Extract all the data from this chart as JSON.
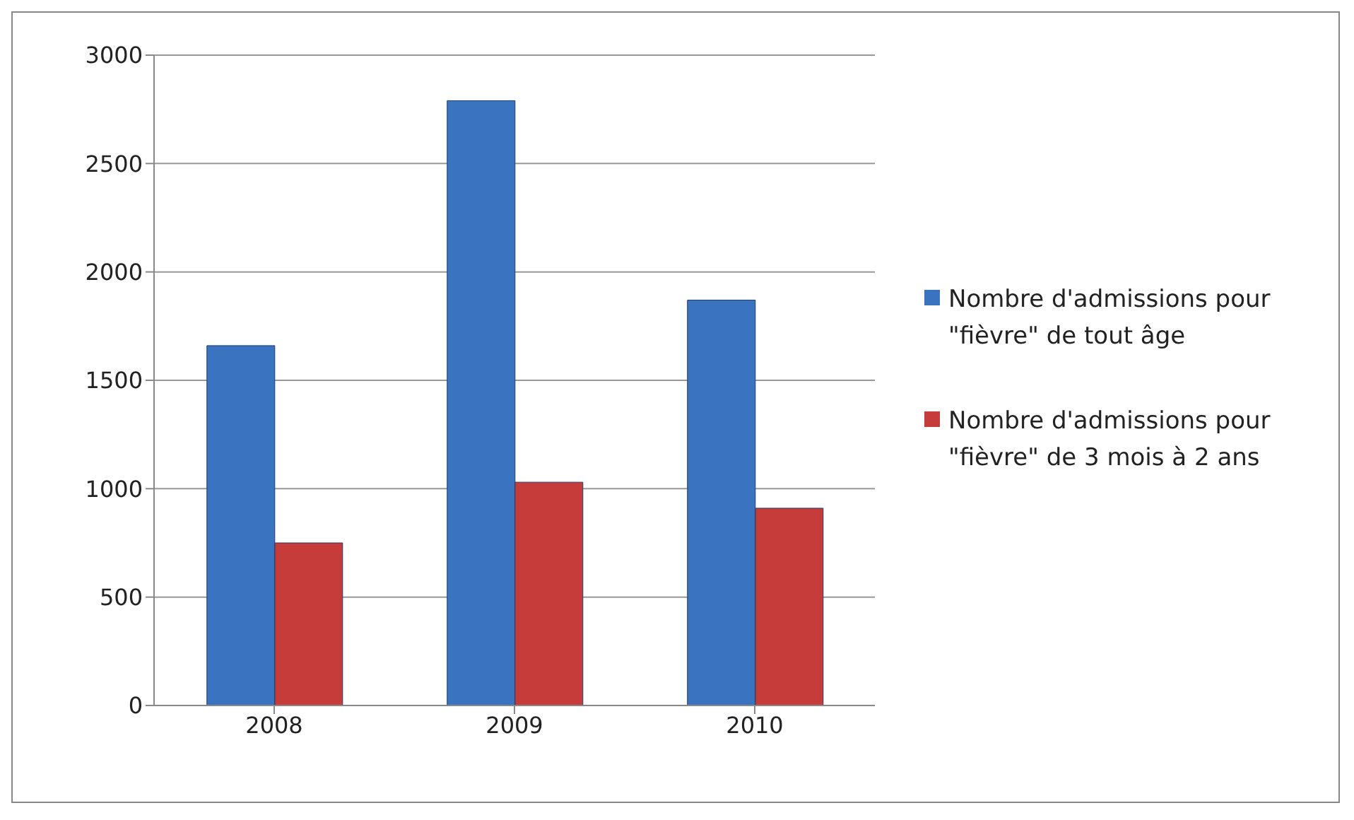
{
  "chart_data": {
    "type": "bar",
    "categories": [
      "2008",
      "2009",
      "2010"
    ],
    "series": [
      {
        "name": "Nombre d'admissions pour \"fièvre\" de tout âge",
        "color": "#3a73c0",
        "values": [
          1660,
          2790,
          1870
        ]
      },
      {
        "name": "Nombre d'admissions pour \"fièvre\" de 3 mois à 2 ans",
        "color": "#c63c3a",
        "values": [
          750,
          1030,
          910
        ]
      }
    ],
    "ylim": [
      0,
      3000
    ],
    "yticks": [
      0,
      500,
      1000,
      1500,
      2000,
      2500,
      3000
    ],
    "grid": "y",
    "legend": "right"
  }
}
